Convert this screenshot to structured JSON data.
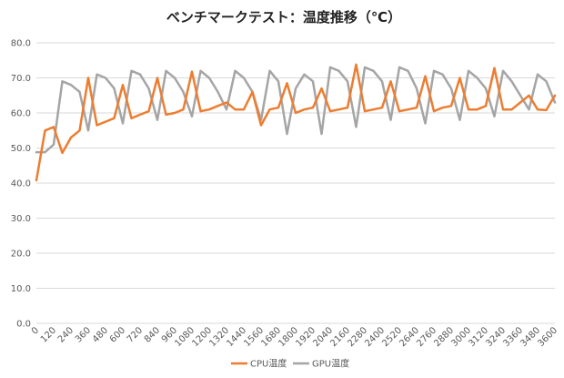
{
  "chart_data": {
    "type": "line",
    "title": "ベンチマークテスト：温度推移（℃）",
    "xlabel": "",
    "ylabel": "",
    "ylim": [
      0,
      80
    ],
    "ytick_labels": [
      "0.0",
      "10.0",
      "20.0",
      "30.0",
      "40.0",
      "50.0",
      "60.0",
      "70.0",
      "80.0"
    ],
    "x_tick_labels": [
      "0",
      "120",
      "240",
      "360",
      "480",
      "600",
      "720",
      "840",
      "960",
      "1080",
      "1200",
      "1320",
      "1440",
      "1560",
      "1680",
      "1800",
      "1920",
      "2040",
      "2160",
      "2280",
      "2400",
      "2520",
      "2640",
      "2760",
      "2880",
      "3000",
      "3120",
      "3240",
      "3360",
      "3480",
      "3600"
    ],
    "x": [
      0,
      60,
      120,
      180,
      240,
      300,
      360,
      420,
      480,
      540,
      600,
      660,
      720,
      780,
      840,
      900,
      960,
      1020,
      1080,
      1140,
      1200,
      1260,
      1320,
      1380,
      1440,
      1500,
      1560,
      1620,
      1680,
      1740,
      1800,
      1860,
      1920,
      1980,
      2040,
      2100,
      2160,
      2220,
      2280,
      2340,
      2400,
      2460,
      2520,
      2580,
      2640,
      2700,
      2760,
      2820,
      2880,
      2940,
      3000,
      3060,
      3120,
      3180,
      3240,
      3300,
      3360,
      3420,
      3480,
      3540,
      3600
    ],
    "grid": true,
    "legend_position": "bottom",
    "series": [
      {
        "name": "CPU温度",
        "color": "#ED7D31",
        "values": [
          40.8,
          55,
          56,
          48.6,
          53,
          55,
          70,
          56.5,
          57.5,
          58.5,
          68,
          58.5,
          59.5,
          60.5,
          70,
          59.5,
          60,
          61,
          71.8,
          60.5,
          61,
          62,
          63,
          61,
          61,
          66,
          56.5,
          61,
          61.5,
          68.5,
          60,
          61,
          61.5,
          67,
          60.5,
          61,
          61.5,
          73.8,
          60.5,
          61,
          61.5,
          69,
          60.5,
          61,
          61.5,
          70.5,
          60.5,
          61.5,
          62,
          70,
          61,
          61,
          62,
          72.8,
          61,
          61,
          63,
          65,
          61,
          60.8,
          65
        ]
      },
      {
        "name": "GPU温度",
        "color": "#A5A5A5",
        "values": [
          48.8,
          48.8,
          51,
          69,
          68,
          66,
          55,
          71,
          70,
          67,
          57,
          72,
          71,
          67,
          58,
          72,
          70,
          66,
          59,
          72,
          70,
          66,
          61,
          72,
          70,
          66,
          58,
          72,
          69,
          54,
          67,
          71,
          69,
          54,
          73,
          72,
          69,
          56,
          73,
          72,
          69,
          58,
          73,
          72,
          67,
          57,
          72,
          71,
          67,
          58,
          72,
          70,
          67,
          59,
          72,
          69,
          65,
          61,
          71,
          69,
          63
        ]
      }
    ]
  }
}
